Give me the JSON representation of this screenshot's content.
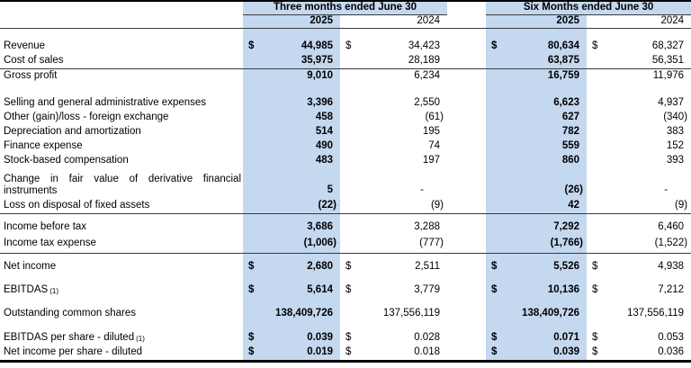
{
  "colors": {
    "highlight": "#c4d8f0",
    "rule": "#3a3a3a",
    "frame": "#000000"
  },
  "header": {
    "periods": [
      {
        "title": "Three months ended June 30",
        "years": [
          "2025",
          "2024"
        ]
      },
      {
        "title": "Six Months ended June 30",
        "years": [
          "2025",
          "2024"
        ]
      }
    ]
  },
  "table": {
    "column_keys": [
      "3M-2025",
      "3M-2024",
      "6M-2025",
      "6M-2024"
    ],
    "rows": [
      {
        "spacer": true,
        "h": 13
      },
      {
        "label": "Revenue",
        "dollar": true,
        "values": [
          "44,985",
          "34,423",
          "80,634",
          "68,327"
        ]
      },
      {
        "label": "Cost of sales",
        "values": [
          "35,975",
          "28,189",
          "63,875",
          "56,351"
        ],
        "rule": true
      },
      {
        "label": "Gross profit",
        "values": [
          "9,010",
          "6,234",
          "16,759",
          "11,976"
        ],
        "h": 17
      },
      {
        "spacer": true,
        "h": 14
      },
      {
        "label": "Selling and general administrative expenses",
        "values": [
          "3,396",
          "2,550",
          "6,623",
          "4,937"
        ]
      },
      {
        "label": "Other (gain)/loss - foreign exchange",
        "values": [
          "458",
          "(61)",
          "627",
          "(340)"
        ]
      },
      {
        "label": "Depreciation and amortization",
        "values": [
          "514",
          "195",
          "782",
          "383"
        ]
      },
      {
        "label": "Finance expense",
        "values": [
          "490",
          "74",
          "559",
          "152"
        ]
      },
      {
        "label": "Stock-based compensation",
        "values": [
          "483",
          "197",
          "860",
          "393"
        ]
      },
      {
        "label": "Change in fair value of derivative financial",
        "label2": "instruments",
        "values": [
          "5",
          "-",
          "(26)",
          "-"
        ]
      },
      {
        "label": "Loss on disposal of fixed assets",
        "values": [
          "(22)",
          "(9)",
          "42",
          "(9)"
        ],
        "rule": true,
        "h": 17
      },
      {
        "spacer": true,
        "h": 7
      },
      {
        "label": "Income before tax",
        "values": [
          "3,686",
          "3,288",
          "7,292",
          "6,460"
        ],
        "h": 17
      },
      {
        "label": "Income tax expense",
        "values": [
          "(1,006)",
          "(777)",
          "(1,766)",
          "(1,522)"
        ],
        "rule": true,
        "h": 20
      },
      {
        "spacer": true,
        "h": 6
      },
      {
        "label": "Net income",
        "dollar": true,
        "values": [
          "2,680",
          "2,511",
          "5,526",
          "4,938"
        ],
        "h": 19
      },
      {
        "spacer": true,
        "h": 7
      },
      {
        "label": "EBITDAS",
        "note": "(1)",
        "dollar": true,
        "values": [
          "5,614",
          "3,779",
          "10,136",
          "7,212"
        ],
        "h": 19
      },
      {
        "spacer": true,
        "h": 7
      },
      {
        "label": "Outstanding common shares",
        "values": [
          "138,409,726",
          "137,556,119",
          "138,409,726",
          "137,556,119"
        ],
        "h": 19
      },
      {
        "spacer": true,
        "h": 9
      },
      {
        "label": "EBITDAS per share - diluted",
        "note": "(1)",
        "dollar": true,
        "values": [
          "0.039",
          "0.028",
          "0.071",
          "0.053"
        ],
        "h": 17
      },
      {
        "label": "Net income per share - diluted",
        "dollar": true,
        "values": [
          "0.019",
          "0.018",
          "0.039",
          "0.036"
        ],
        "h": 17
      }
    ]
  }
}
